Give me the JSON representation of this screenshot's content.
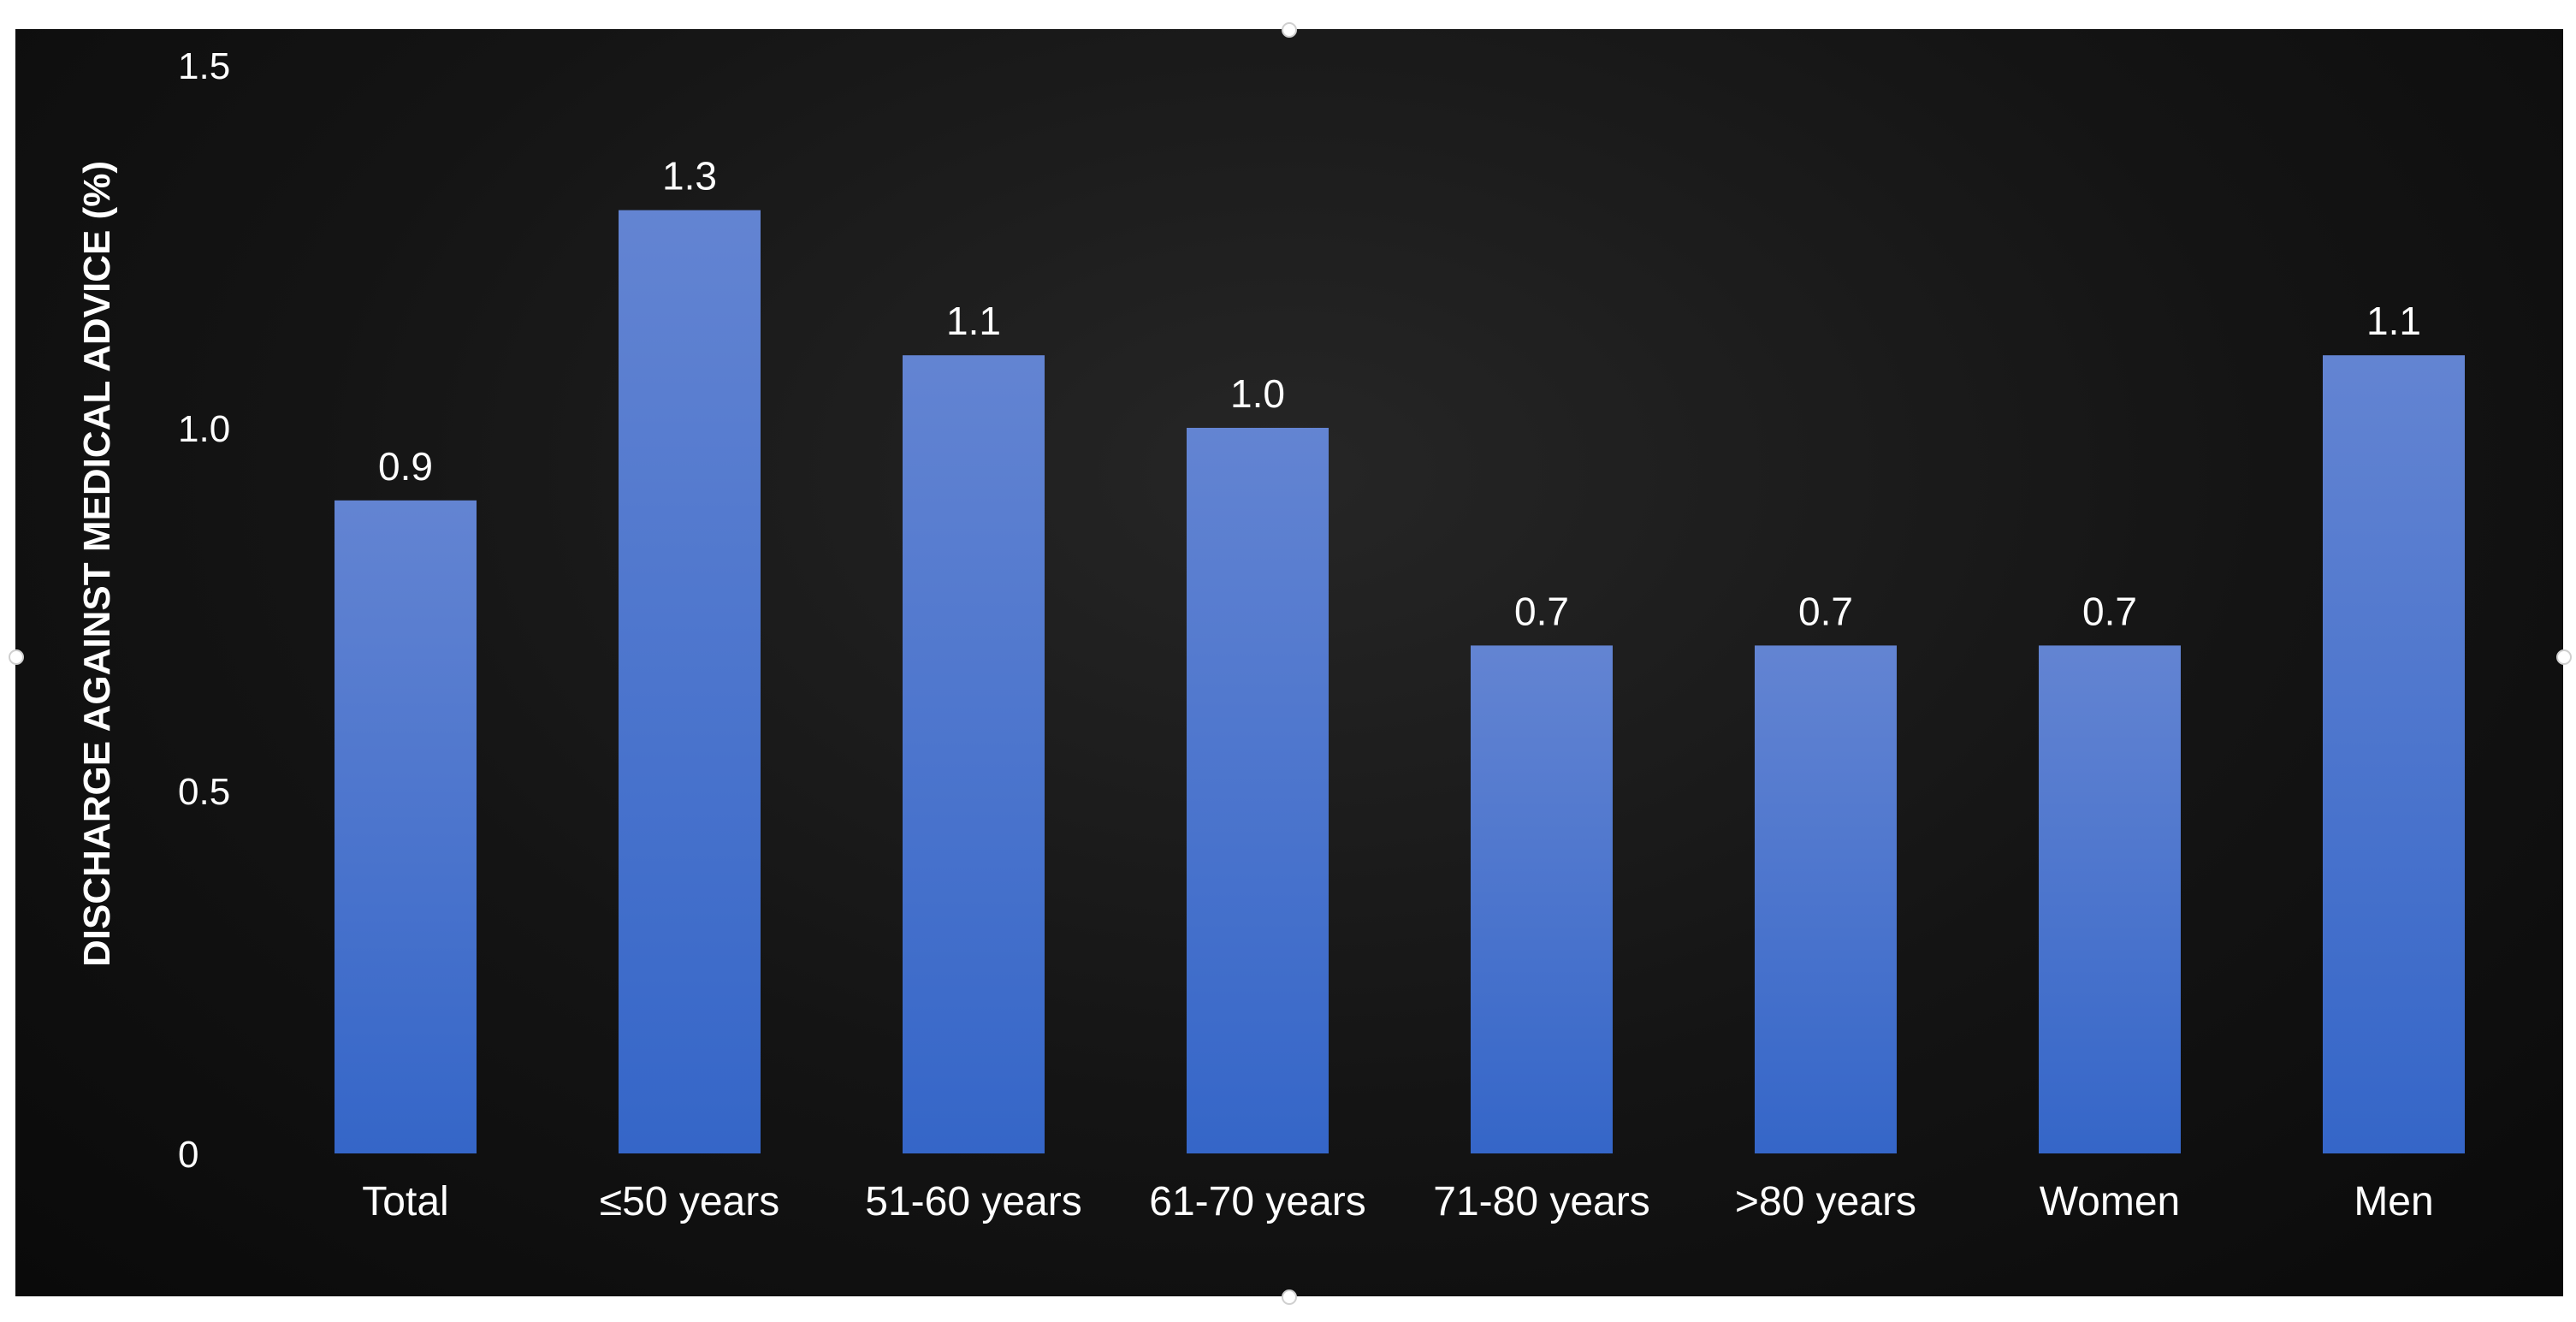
{
  "chart_data": {
    "type": "bar",
    "title": "",
    "xlabel": "",
    "ylabel": "DISCHARGE AGAINST MEDICAL ADVICE (%)",
    "ylim": [
      0,
      1.5
    ],
    "yticks": [
      "0",
      "0.5",
      "1.0",
      "1.5"
    ],
    "ytick_values": [
      0,
      0.5,
      1.0,
      1.5
    ],
    "grid": false,
    "legend": "none",
    "categories": [
      "Total",
      "≤50 years",
      "51-60 years",
      "61-70 years",
      "71-80 years",
      ">80 years",
      "Women",
      "Men"
    ],
    "values": [
      0.9,
      1.3,
      1.1,
      1.0,
      0.7,
      0.7,
      0.7,
      1.1
    ],
    "data_labels": [
      "0.9",
      "1.3",
      "1.1",
      "1.0",
      "0.7",
      "0.7",
      "0.7",
      "1.1"
    ],
    "bar_color_top": "#6384d2",
    "bar_color_bottom": "#3566c8",
    "background": "#111111"
  }
}
